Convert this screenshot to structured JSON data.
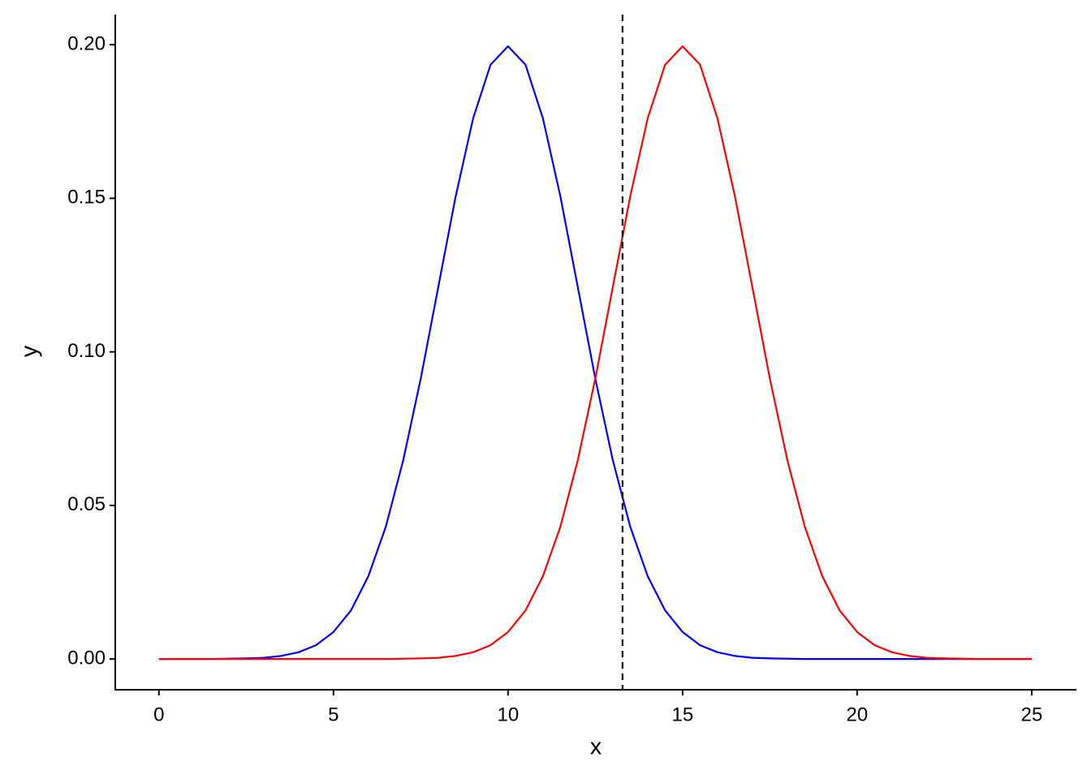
{
  "chart_data": {
    "type": "line",
    "x_label": "x",
    "y_label": "y",
    "x": [
      0,
      0.5,
      1,
      1.5,
      2,
      2.5,
      3,
      3.5,
      4,
      4.5,
      5,
      5.5,
      6,
      6.5,
      7,
      7.5,
      8,
      8.5,
      9,
      9.5,
      10,
      10.5,
      11,
      11.5,
      12,
      12.5,
      13,
      13.5,
      14,
      14.5,
      15,
      15.5,
      16,
      16.5,
      17,
      17.5,
      18,
      18.5,
      19,
      19.5,
      20,
      20.5,
      21,
      21.5,
      22,
      22.5,
      23,
      23.5,
      24,
      24.5,
      25
    ],
    "series": [
      {
        "color": "#0000ff",
        "values": [
          0,
          0,
          0,
          0,
          0.0001,
          0.0002,
          0.0004,
          0.001,
          0.0022,
          0.0045,
          0.0088,
          0.0158,
          0.027,
          0.0431,
          0.0648,
          0.0913,
          0.121,
          0.1506,
          0.176,
          0.1935,
          0.1995,
          0.1935,
          0.176,
          0.1506,
          0.121,
          0.0913,
          0.0648,
          0.0431,
          0.027,
          0.0158,
          0.0088,
          0.0045,
          0.0022,
          0.001,
          0.0004,
          0.0002,
          0.0001,
          0,
          0,
          0,
          0,
          0,
          0,
          0,
          0,
          0,
          0,
          0,
          0,
          0,
          0
        ]
      },
      {
        "color": "#ff0000",
        "values": [
          0,
          0,
          0,
          0,
          0,
          0,
          0,
          0,
          0,
          0,
          0,
          0,
          0,
          0,
          0.0001,
          0.0002,
          0.0004,
          0.001,
          0.0022,
          0.0045,
          0.0088,
          0.0158,
          0.027,
          0.0431,
          0.0648,
          0.0913,
          0.121,
          0.1506,
          0.176,
          0.1935,
          0.1995,
          0.1935,
          0.176,
          0.1506,
          0.121,
          0.0913,
          0.0648,
          0.0431,
          0.027,
          0.0158,
          0.0088,
          0.0045,
          0.0022,
          0.001,
          0.0004,
          0.0002,
          0.0001,
          0,
          0,
          0,
          0
        ]
      }
    ],
    "vline_x": 13.28,
    "xlim": [
      -1.25,
      26.28
    ],
    "xticks": [
      0,
      5,
      10,
      15,
      20,
      25
    ],
    "ylim": [
      -0.01,
      0.2098
    ],
    "yticks": [
      {
        "value": 0,
        "label": "0.00"
      },
      0.05,
      {
        "value": 0.1,
        "label": "0.10"
      },
      0.15,
      {
        "value": 0.2,
        "label": "0.20"
      }
    ]
  }
}
